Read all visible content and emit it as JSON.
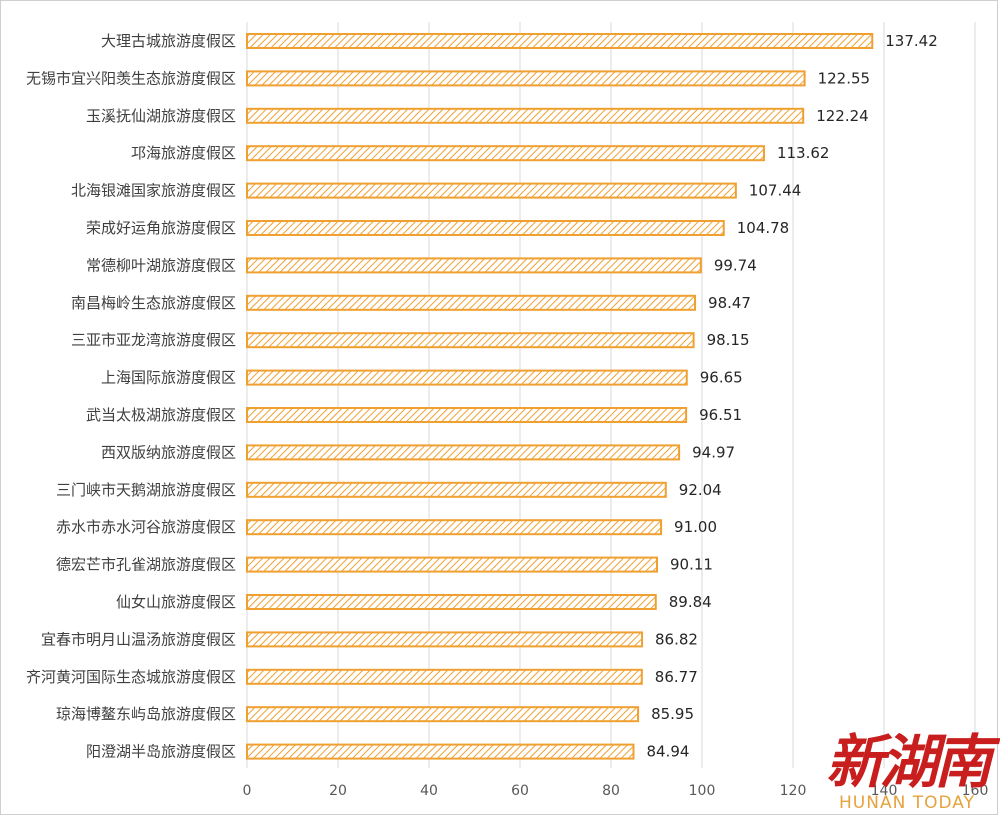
{
  "chart_data": {
    "type": "bar",
    "orientation": "horizontal",
    "categories": [
      "大理古城旅游度假区",
      "无锡市宜兴阳羡生态旅游度假区",
      "玉溪抚仙湖旅游度假区",
      "邛海旅游度假区",
      "北海银滩国家旅游度假区",
      "荣成好运角旅游度假区",
      "常德柳叶湖旅游度假区",
      "南昌梅岭生态旅游度假区",
      "三亚市亚龙湾旅游度假区",
      "上海国际旅游度假区",
      "武当太极湖旅游度假区",
      "西双版纳旅游度假区",
      "三门峡市天鹅湖旅游度假区",
      "赤水市赤水河谷旅游度假区",
      "德宏芒市孔雀湖旅游度假区",
      "仙女山旅游度假区",
      "宜春市明月山温汤旅游度假区",
      "齐河黄河国际生态城旅游度假区",
      "琼海博鳌东屿岛旅游度假区",
      "阳澄湖半岛旅游度假区"
    ],
    "values": [
      137.42,
      122.55,
      122.24,
      113.62,
      107.44,
      104.78,
      99.74,
      98.47,
      98.15,
      96.65,
      96.51,
      94.97,
      92.04,
      91.0,
      90.11,
      89.84,
      86.82,
      86.77,
      85.95,
      84.94
    ],
    "value_labels": [
      "137.42",
      "122.55",
      "122.24",
      "113.62",
      "107.44",
      "104.78",
      "99.74",
      "98.47",
      "98.15",
      "96.65",
      "96.51",
      "94.97",
      "92.04",
      "91.00",
      "90.11",
      "89.84",
      "86.82",
      "86.77",
      "85.95",
      "84.94"
    ],
    "xlim": [
      0,
      160
    ],
    "x_ticks": [
      0,
      20,
      40,
      60,
      80,
      100,
      120,
      140,
      160
    ],
    "grid": "vertical",
    "legend": "none",
    "bar_fill": "hatched",
    "colors": {
      "bar_stroke": "#f0a030",
      "hatch": "#f0a030",
      "grid": "#d9d9d9"
    }
  },
  "watermark": {
    "logo_text": "新湖南",
    "sub_text": "HUNAN TODAY",
    "colors": {
      "logo": "#c81e1e",
      "sub": "#e6a23c"
    }
  }
}
